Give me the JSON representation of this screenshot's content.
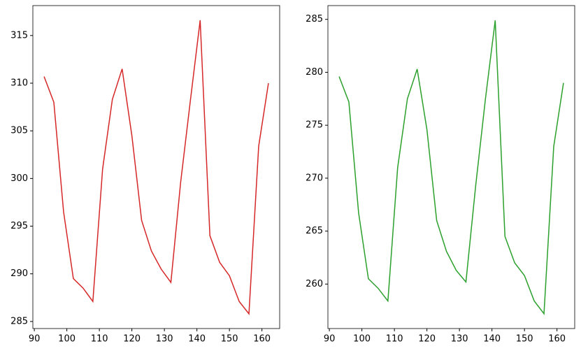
{
  "chart_data": [
    {
      "type": "line",
      "x": [
        93,
        96,
        99,
        102,
        105,
        108,
        111,
        114,
        117,
        120,
        123,
        126,
        129,
        132,
        135,
        138,
        141,
        144,
        147,
        150,
        153,
        156,
        159,
        162
      ],
      "series": [
        {
          "color": "#d62728",
          "values": [
            310.7,
            308,
            296.5,
            289.5,
            288.5,
            287.1,
            301,
            308.3,
            311.5,
            304.5,
            295.6,
            292.4,
            290.5,
            289.1,
            299.6,
            308.2,
            316.6,
            294,
            291.2,
            289.8,
            287.1,
            285.8,
            303.4,
            310
          ]
        }
      ],
      "xlim": [
        89.55,
        165.45
      ],
      "xticks": [
        90,
        100,
        110,
        120,
        130,
        140,
        150,
        160
      ],
      "ylim": [
        284.26,
        318.14
      ],
      "yticks": [
        285,
        290,
        295,
        300,
        305,
        310,
        315
      ]
    },
    {
      "type": "line",
      "x": [
        93,
        96,
        99,
        102,
        105,
        108,
        111,
        114,
        117,
        120,
        123,
        126,
        129,
        132,
        135,
        138,
        141,
        144,
        147,
        150,
        153,
        156,
        159,
        162
      ],
      "series": [
        {
          "color": "#2ca02c",
          "values": [
            279.6,
            277.2,
            266.7,
            260.5,
            259.6,
            258.4,
            271,
            277.5,
            280.3,
            274.6,
            266,
            263.1,
            261.3,
            260.2,
            269.3,
            277.5,
            284.9,
            264.5,
            262,
            260.8,
            258.4,
            257.2,
            273,
            279
          ]
        }
      ],
      "xlim": [
        89.55,
        165.45
      ],
      "xticks": [
        90,
        100,
        110,
        120,
        130,
        140,
        150,
        160
      ],
      "ylim": [
        255.8,
        286.3
      ],
      "yticks": [
        260,
        265,
        270,
        275,
        280,
        285
      ]
    }
  ]
}
